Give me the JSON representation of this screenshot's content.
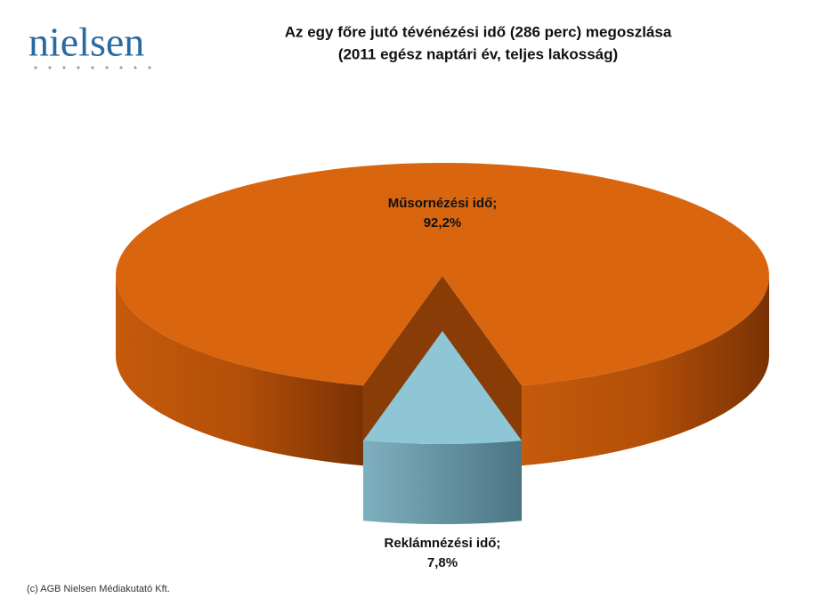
{
  "logo": "nielsen",
  "footer": "(c) AGB Nielsen Médiakutató Kft.",
  "chart_data": {
    "type": "pie3d",
    "title": [
      "Az egy főre jutó tévénézési idő (286 perc) megoszlása",
      "(2011 egész naptári év, teljes lakosság)"
    ],
    "categories": [
      "Műsornézési idő;",
      "Reklámnézési idő;"
    ],
    "values": [
      92.2,
      7.8
    ],
    "value_labels": [
      "92,2%",
      "7,8%"
    ],
    "colors": [
      "#d9650f",
      "#8ec6d6"
    ],
    "side_colors": [
      "#8a3c06",
      "#4f7f8e"
    ],
    "exploded": [
      false,
      true
    ]
  }
}
